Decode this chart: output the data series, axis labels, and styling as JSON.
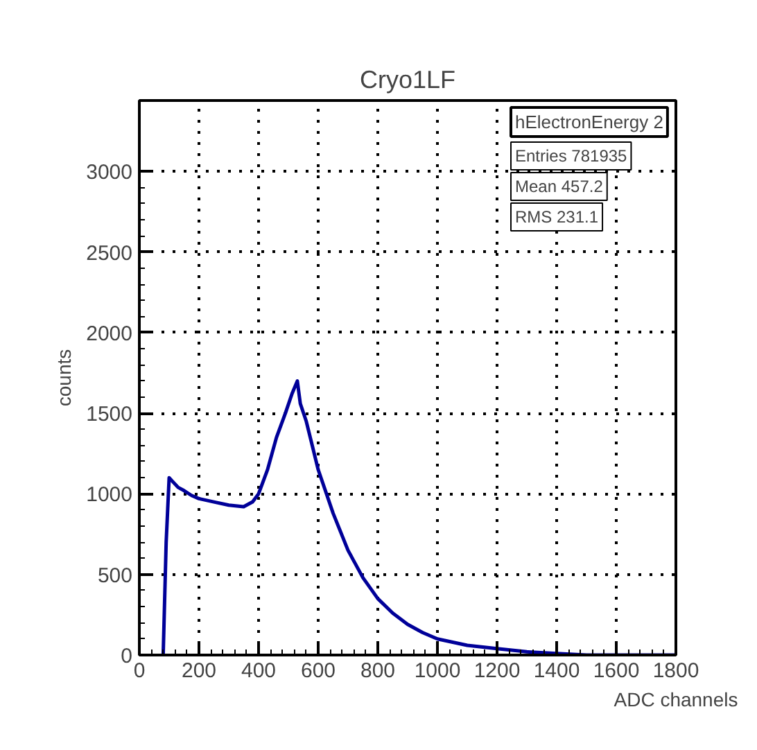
{
  "chart_data": {
    "type": "line",
    "title": "Cryo1LF",
    "xlabel": "ADC channels",
    "ylabel": "counts",
    "x": [
      80,
      90,
      100,
      110,
      130,
      150,
      175,
      200,
      250,
      300,
      350,
      380,
      400,
      430,
      460,
      490,
      512,
      530,
      540,
      560,
      580,
      600,
      650,
      700,
      750,
      800,
      850,
      900,
      950,
      1000,
      1100,
      1200,
      1300,
      1400,
      1500,
      1600,
      1800
    ],
    "series": [
      {
        "color": "#000099",
        "values": [
          0,
          700,
          1100,
          1080,
          1040,
          1020,
          990,
          970,
          950,
          930,
          920,
          950,
          1000,
          1150,
          1350,
          1500,
          1620,
          1700,
          1560,
          1450,
          1300,
          1150,
          880,
          650,
          480,
          350,
          260,
          190,
          140,
          100,
          60,
          40,
          20,
          10,
          0,
          0,
          0
        ]
      }
    ],
    "xlim": [
      0,
      1800
    ],
    "xticks": [
      0,
      200,
      400,
      600,
      800,
      1000,
      1200,
      1400,
      1600,
      1800
    ],
    "ylim": [
      0,
      3440
    ],
    "yticks": [
      0,
      500,
      1000,
      1500,
      2000,
      2500,
      3000
    ],
    "grid": true,
    "line_style": "solid",
    "marker": "none",
    "annotations": [
      "hElectronEnergy 2",
      "Entries 781935",
      "Mean 457.2",
      "RMS 231.1"
    ]
  }
}
